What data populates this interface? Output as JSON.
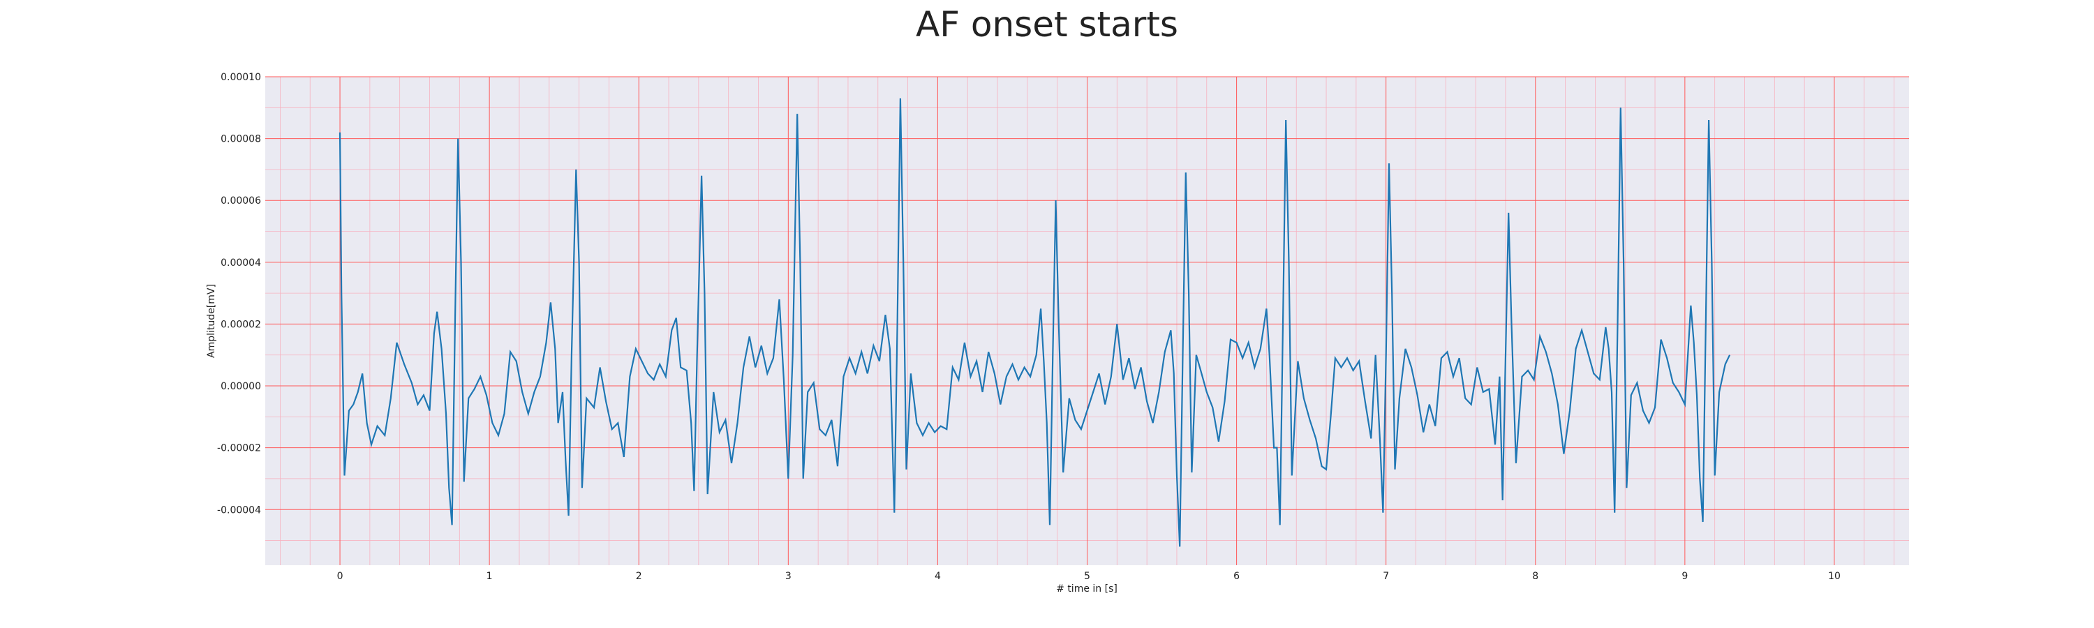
{
  "chart_data": {
    "type": "line",
    "title": "AF onset starts",
    "xlabel": "# time in [s]",
    "ylabel": "Amplitude[mV]",
    "xlim": [
      -0.5,
      10.5
    ],
    "ylim": [
      -5.8e-05,
      0.0001
    ],
    "x_ticks": [
      0,
      1,
      2,
      3,
      4,
      5,
      6,
      7,
      8,
      9,
      10
    ],
    "x_tick_labels": [
      "0",
      "1",
      "2",
      "3",
      "4",
      "5",
      "6",
      "7",
      "8",
      "9",
      "10"
    ],
    "y_ticks": [
      -4e-05,
      -2e-05,
      0.0,
      2e-05,
      4e-05,
      6e-05,
      8e-05,
      0.0001
    ],
    "y_tick_labels": [
      "-0.00004",
      "-0.00002",
      "0.00000",
      "0.00002",
      "0.00004",
      "0.00006",
      "0.00008",
      "0.00010"
    ],
    "grid": true,
    "minor_grid": true,
    "colors": {
      "background": "#eaeaf2",
      "major_grid": "#ff5a5a",
      "minor_grid": "#f7b2c0",
      "line": "#1f77b4"
    },
    "series": [
      {
        "points": [
          [
            0.0,
            8.2e-05
          ],
          [
            0.01,
            3e-05
          ],
          [
            0.03,
            -2.9e-05
          ],
          [
            0.06,
            -8e-06
          ],
          [
            0.09,
            -6e-06
          ],
          [
            0.12,
            -2e-06
          ],
          [
            0.15,
            4e-06
          ],
          [
            0.18,
            -1.2e-05
          ],
          [
            0.21,
            -1.9e-05
          ],
          [
            0.25,
            -1.3e-05
          ],
          [
            0.3,
            -1.6e-05
          ],
          [
            0.34,
            -4e-06
          ],
          [
            0.38,
            1.4e-05
          ],
          [
            0.43,
            7e-06
          ],
          [
            0.48,
            1e-06
          ],
          [
            0.52,
            -6e-06
          ],
          [
            0.56,
            -3e-06
          ],
          [
            0.6,
            -8e-06
          ],
          [
            0.63,
            1.7e-05
          ],
          [
            0.65,
            2.4e-05
          ],
          [
            0.68,
            1.2e-05
          ],
          [
            0.71,
            -9e-06
          ],
          [
            0.73,
            -3.3e-05
          ],
          [
            0.75,
            -4.5e-05
          ],
          [
            0.77,
            2e-05
          ],
          [
            0.79,
            8e-05
          ],
          [
            0.81,
            4e-05
          ],
          [
            0.83,
            -3.1e-05
          ],
          [
            0.86,
            -4e-06
          ],
          [
            0.9,
            -1e-06
          ],
          [
            0.94,
            3e-06
          ],
          [
            0.98,
            -3e-06
          ],
          [
            1.02,
            -1.2e-05
          ],
          [
            1.06,
            -1.6e-05
          ],
          [
            1.1,
            -9e-06
          ],
          [
            1.14,
            1.1e-05
          ],
          [
            1.18,
            8e-06
          ],
          [
            1.22,
            -2e-06
          ],
          [
            1.26,
            -9e-06
          ],
          [
            1.3,
            -2e-06
          ],
          [
            1.34,
            3e-06
          ],
          [
            1.38,
            1.4e-05
          ],
          [
            1.41,
            2.7e-05
          ],
          [
            1.44,
            1.2e-05
          ],
          [
            1.46,
            -1.2e-05
          ],
          [
            1.49,
            -2e-06
          ],
          [
            1.51,
            -2.4e-05
          ],
          [
            1.53,
            -4.2e-05
          ],
          [
            1.55,
            1e-05
          ],
          [
            1.58,
            7e-05
          ],
          [
            1.6,
            4e-05
          ],
          [
            1.62,
            -3.3e-05
          ],
          [
            1.65,
            -4e-06
          ],
          [
            1.7,
            -7e-06
          ],
          [
            1.74,
            6e-06
          ],
          [
            1.78,
            -5e-06
          ],
          [
            1.82,
            -1.4e-05
          ],
          [
            1.86,
            -1.2e-05
          ],
          [
            1.9,
            -2.3e-05
          ],
          [
            1.94,
            3e-06
          ],
          [
            1.98,
            1.2e-05
          ],
          [
            2.02,
            8e-06
          ],
          [
            2.06,
            4e-06
          ],
          [
            2.1,
            2e-06
          ],
          [
            2.14,
            7e-06
          ],
          [
            2.18,
            3e-06
          ],
          [
            2.22,
            1.8e-05
          ],
          [
            2.25,
            2.2e-05
          ],
          [
            2.28,
            6e-06
          ],
          [
            2.32,
            5e-06
          ],
          [
            2.35,
            -1.2e-05
          ],
          [
            2.37,
            -3.4e-05
          ],
          [
            2.39,
            1e-05
          ],
          [
            2.42,
            6.8e-05
          ],
          [
            2.44,
            3e-05
          ],
          [
            2.46,
            -3.5e-05
          ],
          [
            2.5,
            -2e-06
          ],
          [
            2.54,
            -1.5e-05
          ],
          [
            2.58,
            -1.1e-05
          ],
          [
            2.62,
            -2.5e-05
          ],
          [
            2.66,
            -1.2e-05
          ],
          [
            2.7,
            6e-06
          ],
          [
            2.74,
            1.6e-05
          ],
          [
            2.78,
            6e-06
          ],
          [
            2.82,
            1.3e-05
          ],
          [
            2.86,
            4e-06
          ],
          [
            2.9,
            9e-06
          ],
          [
            2.94,
            2.8e-05
          ],
          [
            2.97,
            2e-06
          ],
          [
            3.0,
            -3e-05
          ],
          [
            3.03,
            1e-05
          ],
          [
            3.06,
            8.8e-05
          ],
          [
            3.08,
            4e-05
          ],
          [
            3.1,
            -3e-05
          ],
          [
            3.13,
            -2e-06
          ],
          [
            3.17,
            1e-06
          ],
          [
            3.21,
            -1.4e-05
          ],
          [
            3.25,
            -1.6e-05
          ],
          [
            3.29,
            -1.1e-05
          ],
          [
            3.33,
            -2.6e-05
          ],
          [
            3.37,
            3e-06
          ],
          [
            3.41,
            9e-06
          ],
          [
            3.45,
            4e-06
          ],
          [
            3.49,
            1.1e-05
          ],
          [
            3.53,
            4e-06
          ],
          [
            3.57,
            1.3e-05
          ],
          [
            3.61,
            8e-06
          ],
          [
            3.65,
            2.3e-05
          ],
          [
            3.68,
            1.2e-05
          ],
          [
            3.71,
            -4.1e-05
          ],
          [
            3.73,
            2e-05
          ],
          [
            3.75,
            9.3e-05
          ],
          [
            3.77,
            4e-05
          ],
          [
            3.79,
            -2.7e-05
          ],
          [
            3.82,
            4e-06
          ],
          [
            3.86,
            -1.2e-05
          ],
          [
            3.9,
            -1.6e-05
          ],
          [
            3.94,
            -1.2e-05
          ],
          [
            3.98,
            -1.5e-05
          ],
          [
            4.02,
            -1.3e-05
          ],
          [
            4.06,
            -1.4e-05
          ],
          [
            4.1,
            6e-06
          ],
          [
            4.14,
            2e-06
          ],
          [
            4.18,
            1.4e-05
          ],
          [
            4.22,
            3e-06
          ],
          [
            4.26,
            8e-06
          ],
          [
            4.3,
            -2e-06
          ],
          [
            4.34,
            1.1e-05
          ],
          [
            4.38,
            4e-06
          ],
          [
            4.42,
            -6e-06
          ],
          [
            4.46,
            3e-06
          ],
          [
            4.5,
            7e-06
          ],
          [
            4.54,
            2e-06
          ],
          [
            4.58,
            6e-06
          ],
          [
            4.62,
            3e-06
          ],
          [
            4.66,
            1e-05
          ],
          [
            4.69,
            2.5e-05
          ],
          [
            4.71,
            8e-06
          ],
          [
            4.73,
            -1.2e-05
          ],
          [
            4.75,
            -4.5e-05
          ],
          [
            4.77,
            1e-05
          ],
          [
            4.79,
            6e-05
          ],
          [
            4.81,
            2e-05
          ],
          [
            4.84,
            -2.8e-05
          ],
          [
            4.88,
            -4e-06
          ],
          [
            4.92,
            -1.1e-05
          ],
          [
            4.96,
            -1.4e-05
          ],
          [
            5.0,
            -8e-06
          ],
          [
            5.04,
            -2e-06
          ],
          [
            5.08,
            4e-06
          ],
          [
            5.12,
            -6e-06
          ],
          [
            5.16,
            3e-06
          ],
          [
            5.2,
            2e-05
          ],
          [
            5.24,
            2e-06
          ],
          [
            5.28,
            9e-06
          ],
          [
            5.32,
            -1e-06
          ],
          [
            5.36,
            6e-06
          ],
          [
            5.4,
            -5e-06
          ],
          [
            5.44,
            -1.2e-05
          ],
          [
            5.48,
            -2e-06
          ],
          [
            5.52,
            1.1e-05
          ],
          [
            5.56,
            1.8e-05
          ],
          [
            5.58,
            4e-06
          ],
          [
            5.6,
            -2.9e-05
          ],
          [
            5.62,
            -5.2e-05
          ],
          [
            5.64,
            1e-05
          ],
          [
            5.66,
            6.9e-05
          ],
          [
            5.68,
            3e-05
          ],
          [
            5.7,
            -2.8e-05
          ],
          [
            5.73,
            1e-05
          ],
          [
            5.76,
            5e-06
          ],
          [
            5.8,
            -2e-06
          ],
          [
            5.84,
            -7e-06
          ],
          [
            5.88,
            -1.8e-05
          ],
          [
            5.92,
            -5e-06
          ],
          [
            5.96,
            1.5e-05
          ],
          [
            6.0,
            1.4e-05
          ],
          [
            6.04,
            9e-06
          ],
          [
            6.08,
            1.4e-05
          ],
          [
            6.12,
            6e-06
          ],
          [
            6.16,
            1.2e-05
          ],
          [
            6.2,
            2.5e-05
          ],
          [
            6.22,
            1e-05
          ],
          [
            6.25,
            -2e-05
          ],
          [
            6.27,
            -2e-05
          ],
          [
            6.29,
            -4.5e-05
          ],
          [
            6.31,
            2e-05
          ],
          [
            6.33,
            8.6e-05
          ],
          [
            6.35,
            4e-05
          ],
          [
            6.37,
            -2.9e-05
          ],
          [
            6.41,
            8e-06
          ],
          [
            6.45,
            -4e-06
          ],
          [
            6.49,
            -1.1e-05
          ],
          [
            6.53,
            -1.7e-05
          ],
          [
            6.57,
            -2.6e-05
          ],
          [
            6.6,
            -2.7e-05
          ],
          [
            6.63,
            -1e-05
          ],
          [
            6.66,
            9e-06
          ],
          [
            6.7,
            6e-06
          ],
          [
            6.74,
            9e-06
          ],
          [
            6.78,
            5e-06
          ],
          [
            6.82,
            8e-06
          ],
          [
            6.86,
            -5e-06
          ],
          [
            6.9,
            -1.7e-05
          ],
          [
            6.93,
            1e-05
          ],
          [
            6.96,
            -1.8e-05
          ],
          [
            6.98,
            -4.1e-05
          ],
          [
            7.0,
            1e-05
          ],
          [
            7.02,
            7.2e-05
          ],
          [
            7.04,
            3e-05
          ],
          [
            7.06,
            -2.7e-05
          ],
          [
            7.09,
            -4e-06
          ],
          [
            7.13,
            1.2e-05
          ],
          [
            7.17,
            6e-06
          ],
          [
            7.21,
            -3e-06
          ],
          [
            7.25,
            -1.5e-05
          ],
          [
            7.29,
            -6e-06
          ],
          [
            7.33,
            -1.3e-05
          ],
          [
            7.37,
            9e-06
          ],
          [
            7.41,
            1.1e-05
          ],
          [
            7.45,
            3e-06
          ],
          [
            7.49,
            9e-06
          ],
          [
            7.53,
            -4e-06
          ],
          [
            7.57,
            -6e-06
          ],
          [
            7.61,
            6e-06
          ],
          [
            7.65,
            -2e-06
          ],
          [
            7.69,
            -1e-06
          ],
          [
            7.73,
            -1.9e-05
          ],
          [
            7.76,
            3e-06
          ],
          [
            7.78,
            -3.7e-05
          ],
          [
            7.8,
            1e-05
          ],
          [
            7.82,
            5.6e-05
          ],
          [
            7.84,
            2e-05
          ],
          [
            7.87,
            -2.5e-05
          ],
          [
            7.91,
            3e-06
          ],
          [
            7.95,
            5e-06
          ],
          [
            7.99,
            2e-06
          ],
          [
            8.03,
            1.6e-05
          ],
          [
            8.07,
            1.1e-05
          ],
          [
            8.11,
            4e-06
          ],
          [
            8.15,
            -6e-06
          ],
          [
            8.19,
            -2.2e-05
          ],
          [
            8.23,
            -8e-06
          ],
          [
            8.27,
            1.2e-05
          ],
          [
            8.31,
            1.8e-05
          ],
          [
            8.35,
            1.1e-05
          ],
          [
            8.39,
            4e-06
          ],
          [
            8.43,
            2e-06
          ],
          [
            8.47,
            1.9e-05
          ],
          [
            8.49,
            1.2e-05
          ],
          [
            8.51,
            -2e-06
          ],
          [
            8.53,
            -4.1e-05
          ],
          [
            8.55,
            2e-05
          ],
          [
            8.57,
            9e-05
          ],
          [
            8.59,
            4e-05
          ],
          [
            8.61,
            -3.3e-05
          ],
          [
            8.64,
            -3e-06
          ],
          [
            8.68,
            1e-06
          ],
          [
            8.72,
            -8e-06
          ],
          [
            8.76,
            -1.2e-05
          ],
          [
            8.8,
            -7e-06
          ],
          [
            8.84,
            1.5e-05
          ],
          [
            8.88,
            9e-06
          ],
          [
            8.92,
            1e-06
          ],
          [
            8.96,
            -2e-06
          ],
          [
            9.0,
            -6e-06
          ],
          [
            9.04,
            2.6e-05
          ],
          [
            9.06,
            1.4e-05
          ],
          [
            9.08,
            -3e-06
          ],
          [
            9.1,
            -3e-05
          ],
          [
            9.12,
            -4.4e-05
          ],
          [
            9.14,
            2e-05
          ],
          [
            9.16,
            8.6e-05
          ],
          [
            9.18,
            4e-05
          ],
          [
            9.2,
            -2.9e-05
          ],
          [
            9.23,
            -2e-06
          ],
          [
            9.27,
            7e-06
          ],
          [
            9.3,
            1e-05
          ]
        ]
      }
    ]
  }
}
